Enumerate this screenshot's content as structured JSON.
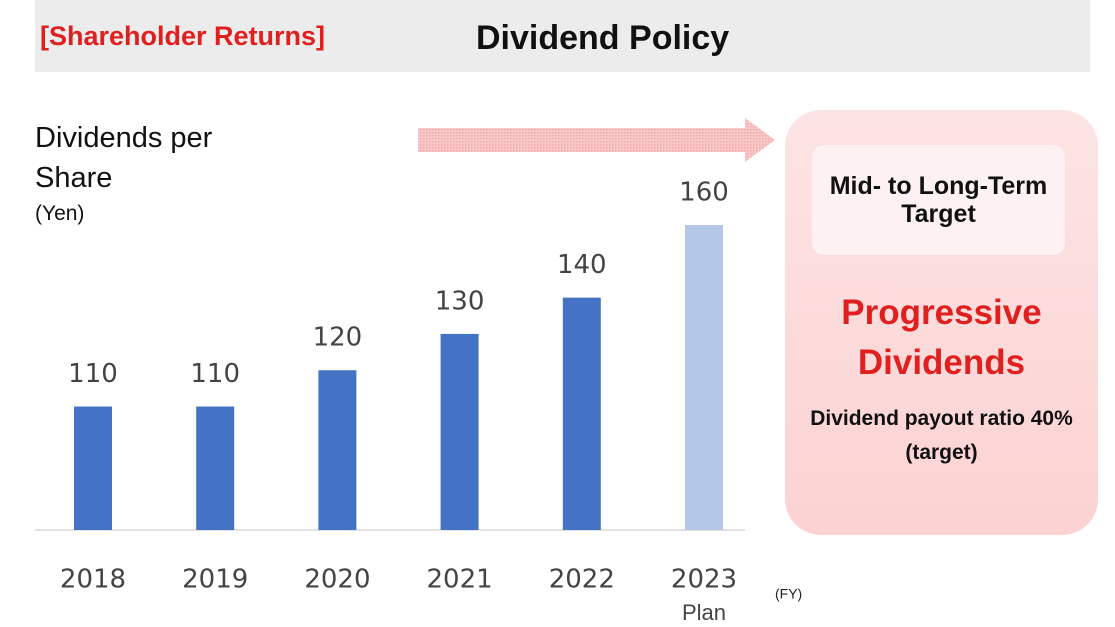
{
  "chart_data": {
    "type": "bar",
    "section": "[Shareholder Returns]",
    "title": "Dividend Policy",
    "ylabel": "Dividends per Share",
    "yunit": "(Yen)",
    "xunit": "(FY)",
    "categories": [
      "2018",
      "2019",
      "2020",
      "2021",
      "2022",
      "2023"
    ],
    "sublabels": [
      null,
      null,
      null,
      null,
      null,
      "Plan"
    ],
    "values": [
      110,
      110,
      120,
      130,
      140,
      160
    ],
    "colors": [
      "#4472c4",
      "#4472c4",
      "#4472c4",
      "#4472c4",
      "#4472c4",
      "#b4c7e7"
    ],
    "ylim": [
      76,
      160
    ],
    "target": {
      "heading": "Mid- to Long-Term Target",
      "policy": "Progressive Dividends",
      "detail": "Dividend payout ratio 40% (target)"
    }
  }
}
